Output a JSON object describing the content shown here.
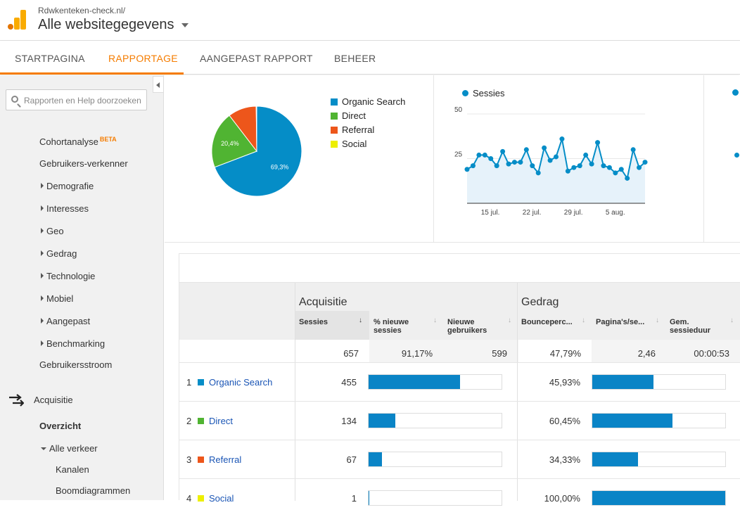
{
  "account": {
    "url": "Rdwkenteken-check.nl/",
    "title": "Alle websitegegevens"
  },
  "nav": {
    "tabs": [
      "STARTPAGINA",
      "RAPPORTAGE",
      "AANGEPAST RAPPORT",
      "BEHEER"
    ],
    "active": "RAPPORTAGE"
  },
  "sidebar": {
    "search_placeholder": "Rapporten en Help doorzoeken",
    "items": {
      "cohort": "Cohortanalyse",
      "beta": "BETA",
      "explorer": "Gebruikers-verkenner",
      "demografie": "Demografie",
      "interesses": "Interesses",
      "geo": "Geo",
      "gedrag": "Gedrag",
      "technologie": "Technologie",
      "mobiel": "Mobiel",
      "aangepast": "Aangepast",
      "benchmarking": "Benchmarking",
      "stroom": "Gebruikersstroom",
      "acquisitie": "Acquisitie",
      "overzicht": "Overzicht",
      "alle_verkeer": "Alle verkeer",
      "kanalen": "Kanalen",
      "boom": "Boomdiagrammen"
    }
  },
  "chart_data": [
    {
      "type": "pie",
      "labels": [
        "Organic Search",
        "Direct",
        "Referral",
        "Social"
      ],
      "values": [
        69.3,
        20.4,
        10.2,
        0.2
      ],
      "slice_labels": [
        "69,3%",
        "20,4%",
        "",
        ""
      ],
      "colors": [
        "#058dc7",
        "#50b432",
        "#ed561b",
        "#edef00"
      ],
      "legend": "right"
    },
    {
      "type": "area",
      "legend": [
        "Sessies"
      ],
      "color": "#058dc7",
      "ylim": [
        0,
        50
      ],
      "yticks": [
        "50",
        "25"
      ],
      "xticks": [
        "15 jul.",
        "22 jul.",
        "29 jul.",
        "5 aug."
      ],
      "values": [
        19,
        21,
        27,
        27,
        25,
        21,
        29,
        22,
        23,
        23,
        30,
        21,
        17,
        31,
        24,
        26,
        36,
        18,
        20,
        21,
        27,
        22,
        34,
        21,
        20,
        17,
        19,
        14,
        30,
        20,
        23
      ]
    }
  ],
  "table": {
    "groups": {
      "acquisitie": "Acquisitie",
      "gedrag": "Gedrag"
    },
    "headers": {
      "sessies": "Sessies",
      "nieuwe_sessies": "% nieuwe sessies",
      "nieuwe_gebruikers": "Nieuwe gebruikers",
      "bounce": "Bounceperc...",
      "paginas": "Pagina's/se...",
      "duur": "Gem. sessieduur"
    },
    "totals": {
      "sessies": "657",
      "nieuwe_sessies": "91,17%",
      "nieuwe_gebruikers": "599",
      "bounce": "47,79%",
      "paginas": "2,46",
      "duur": "00:00:53"
    },
    "rows": [
      {
        "num": "1",
        "channel": "Organic Search",
        "color": "#058dc7",
        "sessies": "455",
        "sess_frac": 0.69,
        "bounce": "45,93%",
        "bounce_frac": 0.459
      },
      {
        "num": "2",
        "channel": "Direct",
        "color": "#50b432",
        "sessies": "134",
        "sess_frac": 0.2,
        "bounce": "60,45%",
        "bounce_frac": 0.6045
      },
      {
        "num": "3",
        "channel": "Referral",
        "color": "#ed561b",
        "sessies": "67",
        "sess_frac": 0.1,
        "bounce": "34,33%",
        "bounce_frac": 0.3433
      },
      {
        "num": "4",
        "channel": "Social",
        "color": "#edef00",
        "sessies": "1",
        "sess_frac": 0.002,
        "bounce": "100,00%",
        "bounce_frac": 1.0
      }
    ]
  }
}
